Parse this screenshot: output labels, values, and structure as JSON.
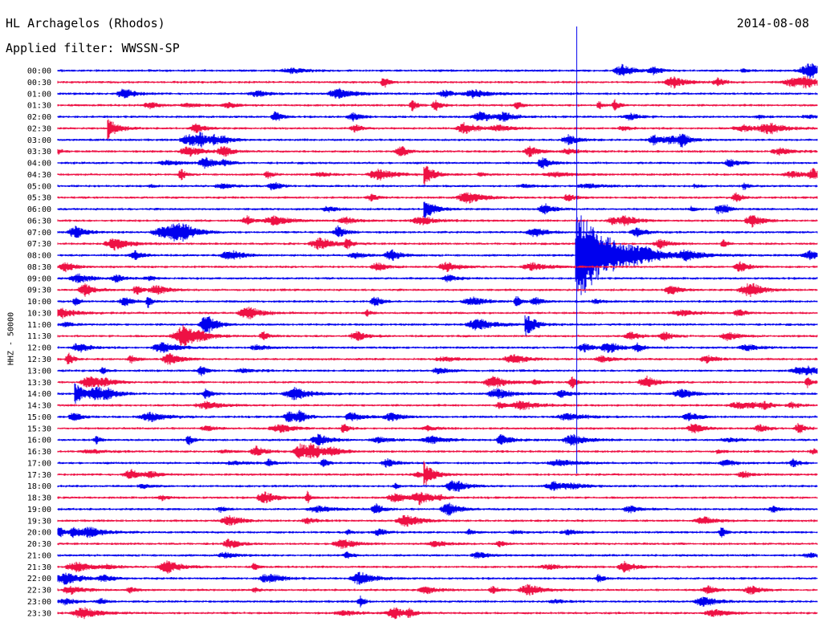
{
  "header": {
    "station": "HL Archagelos (Rhodos)",
    "filter": "Applied filter: WWSSN-SP",
    "date": "2014-08-08",
    "channel": "HHZ - 50000"
  },
  "colors": {
    "even_rows": "#0000ee",
    "odd_rows": "#ee1144",
    "background": "#ffffff"
  },
  "chart_data": {
    "type": "helicorder",
    "title": "HL Archagelos (Rhodos)",
    "subtitle": "Applied filter: WWSSN-SP",
    "date": "2014-08-08",
    "ylabel": "HHZ - 50000",
    "row_interval_minutes": 30,
    "tick_labels": [
      "00:00",
      "00:30",
      "01:00",
      "01:30",
      "02:00",
      "02:30",
      "03:00",
      "03:30",
      "04:00",
      "04:30",
      "05:00",
      "05:30",
      "06:00",
      "06:30",
      "07:00",
      "07:30",
      "08:00",
      "08:30",
      "09:00",
      "09:30",
      "10:00",
      "10:30",
      "11:00",
      "11:30",
      "12:00",
      "12:30",
      "13:00",
      "13:30",
      "14:00",
      "14:30",
      "15:00",
      "15:30",
      "16:00",
      "16:30",
      "17:00",
      "17:30",
      "18:00",
      "18:30",
      "19:00",
      "19:30",
      "20:00",
      "20:30",
      "21:00",
      "21:30",
      "22:00",
      "22:30",
      "23:00",
      "23:30"
    ],
    "row_colors": [
      "blue",
      "red"
    ],
    "events": [
      {
        "row": 16,
        "minute": 20.5,
        "note": "large earthquake, trace saturated and clipped"
      },
      {
        "row": 22,
        "minute": 18.5
      },
      {
        "row": 35,
        "minute": 14.5
      },
      {
        "row": 5,
        "minute": 2.0
      },
      {
        "row": 9,
        "minute": 14.5
      },
      {
        "row": 12,
        "minute": 14.5
      },
      {
        "row": 28,
        "minute": 0.7
      }
    ]
  }
}
